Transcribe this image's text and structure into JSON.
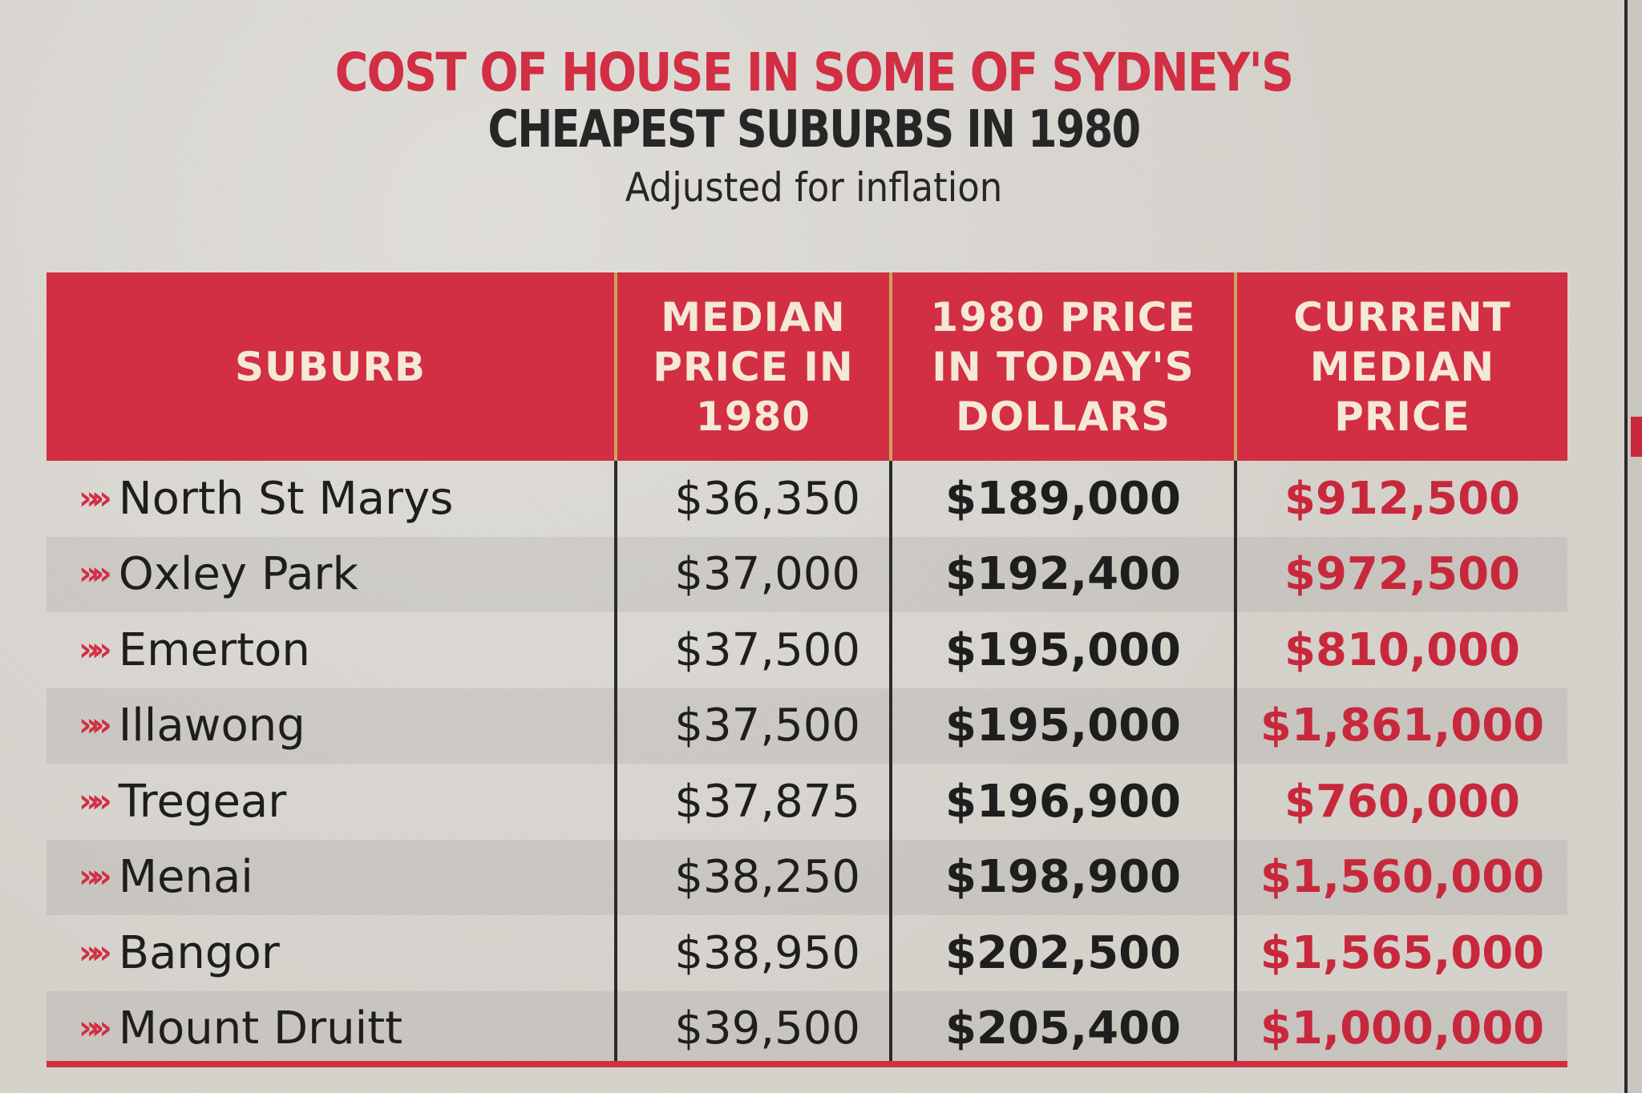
{
  "header": {
    "title_line1": "COST OF HOUSE IN SOME OF SYDNEY'S",
    "title_line2": "CHEAPEST SUBURBS IN 1980",
    "subtitle": "Adjusted for inflation"
  },
  "table": {
    "columns": [
      [
        "SUBURB"
      ],
      [
        "MEDIAN",
        "PRICE IN",
        "1980"
      ],
      [
        "1980 PRICE",
        "IN TODAY'S",
        "DOLLARS"
      ],
      [
        "CURRENT",
        "MEDIAN",
        "PRICE"
      ]
    ],
    "rows": [
      {
        "suburb": "North St Marys",
        "median_1980": "$36,350",
        "price_today": "$189,000",
        "current_median": "$912,500"
      },
      {
        "suburb": "Oxley Park",
        "median_1980": "$37,000",
        "price_today": "$192,400",
        "current_median": "$972,500"
      },
      {
        "suburb": "Emerton",
        "median_1980": "$37,500",
        "price_today": "$195,000",
        "current_median": "$810,000"
      },
      {
        "suburb": "Illawong",
        "median_1980": "$37,500",
        "price_today": "$195,000",
        "current_median": "$1,861,000"
      },
      {
        "suburb": "Tregear",
        "median_1980": "$37,875",
        "price_today": "$196,900",
        "current_median": "$760,000"
      },
      {
        "suburb": "Menai",
        "median_1980": "$38,250",
        "price_today": "$198,900",
        "current_median": "$1,560,000"
      },
      {
        "suburb": "Bangor",
        "median_1980": "$38,950",
        "price_today": "$202,500",
        "current_median": "$1,565,000"
      },
      {
        "suburb": "Mount Druitt",
        "median_1980": "$39,500",
        "price_today": "$205,400",
        "current_median": "$1,000,000"
      }
    ]
  },
  "colors": {
    "accent_red": "#d22e44",
    "header_text": "#f4e8d6",
    "body_text": "#1e1e1e",
    "paper": "#d6d3cd"
  },
  "icons": {
    "row_bullet": "double-chevron-right-icon"
  }
}
